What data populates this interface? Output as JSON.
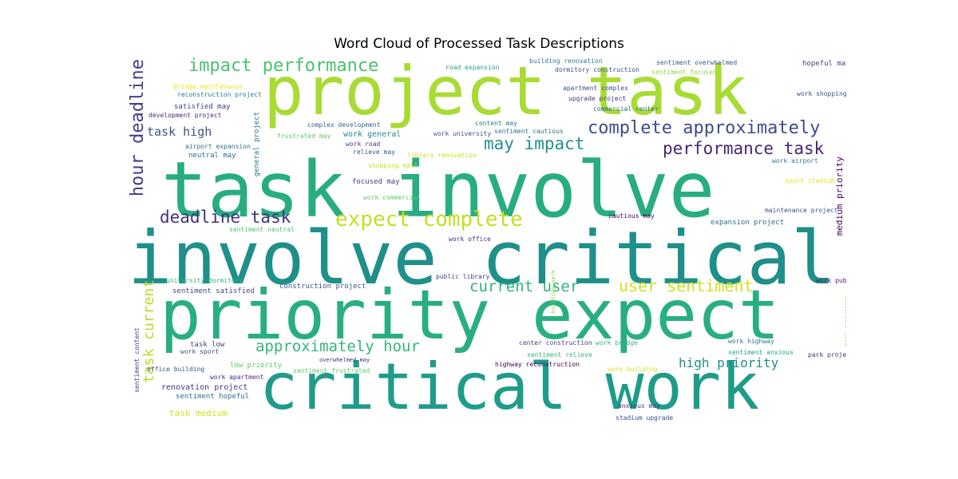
{
  "chart_data": {
    "type": "wordcloud",
    "title": "Word Cloud of Processed Task Descriptions",
    "words": [
      {
        "text": "task involve",
        "weight": 100,
        "color": "#27AD81"
      },
      {
        "text": "involve critical",
        "weight": 96,
        "color": "#1F8F8A"
      },
      {
        "text": "priority expect",
        "weight": 88,
        "color": "#29AF7F"
      },
      {
        "text": "project task",
        "weight": 80,
        "color": "#A8DB34"
      },
      {
        "text": "critical work",
        "weight": 78,
        "color": "#1E9C89"
      },
      {
        "text": "complete approximately",
        "weight": 22,
        "color": "#3E4C8A"
      },
      {
        "text": "expect complete",
        "weight": 25,
        "color": "#C2DF23"
      },
      {
        "text": "impact performance",
        "weight": 21,
        "color": "#4AC16D"
      },
      {
        "text": "performance task",
        "weight": 20,
        "color": "#482475"
      },
      {
        "text": "may impact",
        "weight": 20,
        "color": "#21908D"
      },
      {
        "text": "hour deadline",
        "weight": 22,
        "color": "#433E85"
      },
      {
        "text": "deadline task",
        "weight": 20,
        "color": "#46307E"
      },
      {
        "text": "user sentiment",
        "weight": 20,
        "color": "#D0E11C"
      },
      {
        "text": "current user",
        "weight": 19,
        "color": "#2EB37C"
      },
      {
        "text": "task current",
        "weight": 18,
        "color": "#B5DE2B"
      },
      {
        "text": "approximately hour",
        "weight": 19,
        "color": "#35B779"
      },
      {
        "text": "high priority",
        "weight": 16,
        "color": "#228C8D"
      },
      {
        "text": "task high",
        "weight": 14,
        "color": "#3B528B"
      },
      {
        "text": "medium priority",
        "weight": 11,
        "color": "#440154"
      },
      {
        "text": "general project",
        "weight": 9,
        "color": "#2A788E"
      },
      {
        "text": "work general",
        "weight": 9,
        "color": "#238A8D"
      },
      {
        "text": "task medium",
        "weight": 10,
        "color": "#D8E219"
      },
      {
        "text": "renovation project",
        "weight": 9,
        "color": "#453781"
      },
      {
        "text": "task low",
        "weight": 8,
        "color": "#3F4788"
      },
      {
        "text": "low priority",
        "weight": 8,
        "color": "#5EC962"
      },
      {
        "text": "satisfied may",
        "weight": 8,
        "color": "#433E85"
      },
      {
        "text": "focused may",
        "weight": 8,
        "color": "#414487"
      },
      {
        "text": "sentiment satisfied",
        "weight": 8,
        "color": "#404688"
      },
      {
        "text": "sentiment hopeful",
        "weight": 8,
        "color": "#2C728E"
      },
      {
        "text": "construction project",
        "weight": 8,
        "color": "#3B528B"
      },
      {
        "text": "sentiment content",
        "weight": 7,
        "color": "#3E4A89"
      },
      {
        "text": "neutral may",
        "weight": 7,
        "color": "#2D708E"
      },
      {
        "text": "relieve may",
        "weight": 7,
        "color": "#39568C"
      },
      {
        "text": "expansion project",
        "weight": 7,
        "color": "#2D708E"
      },
      {
        "text": "hopeful may",
        "weight": 7,
        "color": "#3F4788"
      },
      {
        "text": "work shopping",
        "weight": 6,
        "color": "#3B528B"
      },
      {
        "text": "sentiment focused",
        "weight": 6,
        "color": "#8FD744"
      },
      {
        "text": "sentiment overwhelmed",
        "weight": 6,
        "color": "#3B528B"
      },
      {
        "text": "dormitory construction",
        "weight": 6,
        "color": "#3B528B"
      },
      {
        "text": "building renovation",
        "weight": 6,
        "color": "#2A788E"
      },
      {
        "text": "apartment complex",
        "weight": 6,
        "color": "#3E4A89"
      },
      {
        "text": "upgrade project",
        "weight": 6,
        "color": "#453781"
      },
      {
        "text": "commercial center",
        "weight": 6,
        "color": "#31688E"
      },
      {
        "text": "road expansion",
        "weight": 6,
        "color": "#20A386"
      },
      {
        "text": "content may",
        "weight": 6,
        "color": "#2A788E"
      },
      {
        "text": "sentiment cautious",
        "weight": 6,
        "color": "#2D708E"
      },
      {
        "text": "work university",
        "weight": 6,
        "color": "#3B528B"
      },
      {
        "text": "frustrated may",
        "weight": 6,
        "color": "#5EC962"
      },
      {
        "text": "complex development",
        "weight": 6,
        "color": "#33638D"
      },
      {
        "text": "work road",
        "weight": 6,
        "color": "#453781"
      },
      {
        "text": "library renovation",
        "weight": 6,
        "color": "#CDE11D"
      },
      {
        "text": "shopping mall",
        "weight": 6,
        "color": "#C8E020"
      },
      {
        "text": "work commercial",
        "weight": 6,
        "color": "#5EC962"
      },
      {
        "text": "bridge maintenance",
        "weight": 6,
        "color": "#EAE51A"
      },
      {
        "text": "reconstruction project",
        "weight": 6,
        "color": "#287C8E"
      },
      {
        "text": "development project",
        "weight": 6,
        "color": "#482878"
      },
      {
        "text": "airport expansion",
        "weight": 6,
        "color": "#2C728E"
      },
      {
        "text": "work airport",
        "weight": 6,
        "color": "#2A788E"
      },
      {
        "text": "sport stadium",
        "weight": 6,
        "color": "#E5E419"
      },
      {
        "text": "maintenance project",
        "weight": 6,
        "color": "#3B528B"
      },
      {
        "text": "cautious may",
        "weight": 6,
        "color": "#440154"
      },
      {
        "text": "sentiment neutral",
        "weight": 6,
        "color": "#4AC16D"
      },
      {
        "text": "work office",
        "weight": 6,
        "color": "#472D7B"
      },
      {
        "text": "public library",
        "weight": 6,
        "color": "#404688"
      },
      {
        "text": "university dormitory",
        "weight": 6,
        "color": "#35B779"
      },
      {
        "text": "building park",
        "weight": 5,
        "color": "#8FD744"
      },
      {
        "text": "work public",
        "weight": 6,
        "color": "#482475"
      },
      {
        "text": "mall renovation",
        "weight": 5,
        "color": "#7AD151"
      },
      {
        "text": "work sport",
        "weight": 6,
        "color": "#3E4A89"
      },
      {
        "text": "center construction",
        "weight": 6,
        "color": "#433E85"
      },
      {
        "text": "work bridge",
        "weight": 6,
        "color": "#35B779"
      },
      {
        "text": "work highway",
        "weight": 6,
        "color": "#2D708E"
      },
      {
        "text": "sentiment relieve",
        "weight": 6,
        "color": "#35B779"
      },
      {
        "text": "sentiment anxious",
        "weight": 6,
        "color": "#20A386"
      },
      {
        "text": "park project",
        "weight": 6,
        "color": "#46337E"
      },
      {
        "text": "overwhelmed may",
        "weight": 5,
        "color": "#472D7B"
      },
      {
        "text": "highway reconstruction",
        "weight": 6,
        "color": "#440154"
      },
      {
        "text": "work building",
        "weight": 6,
        "color": "#D8E219"
      },
      {
        "text": "office building",
        "weight": 6,
        "color": "#3B528B"
      },
      {
        "text": "sentiment frustrated",
        "weight": 6,
        "color": "#5EC962"
      },
      {
        "text": "work apartment",
        "weight": 6,
        "color": "#482878"
      },
      {
        "text": "anxious may",
        "weight": 6,
        "color": "#46337E"
      },
      {
        "text": "stadium upgrade",
        "weight": 6,
        "color": "#3B528B"
      }
    ]
  }
}
